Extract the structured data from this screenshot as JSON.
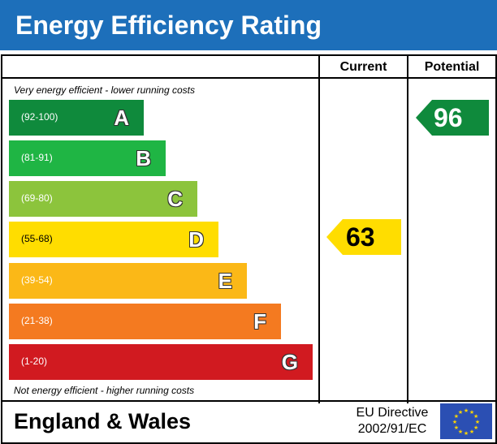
{
  "header": {
    "title": "Energy Efficiency Rating"
  },
  "columns": {
    "current": "Current",
    "potential": "Potential"
  },
  "notes": {
    "top": "Very energy efficient - lower running costs",
    "bottom": "Not energy efficient - higher running costs"
  },
  "chart_data": {
    "type": "bar",
    "title": "Energy Efficiency Rating",
    "categories": [
      "A",
      "B",
      "C",
      "D",
      "E",
      "F",
      "G"
    ],
    "ranges": [
      "(92-100)",
      "(81-91)",
      "(69-80)",
      "(55-68)",
      "(39-54)",
      "(21-38)",
      "(1-20)"
    ],
    "colors": [
      "#0f8a3c",
      "#1fb544",
      "#8cc43c",
      "#ffdd00",
      "#fbb817",
      "#f47a20",
      "#d11a20"
    ],
    "current": {
      "value": 63,
      "band": "D",
      "color": "#ffdd00"
    },
    "potential": {
      "value": 96,
      "band": "A",
      "color": "#0f8a3c"
    }
  },
  "footer": {
    "region": "England & Wales",
    "directive_line1": "EU Directive",
    "directive_line2": "2002/91/EC"
  }
}
